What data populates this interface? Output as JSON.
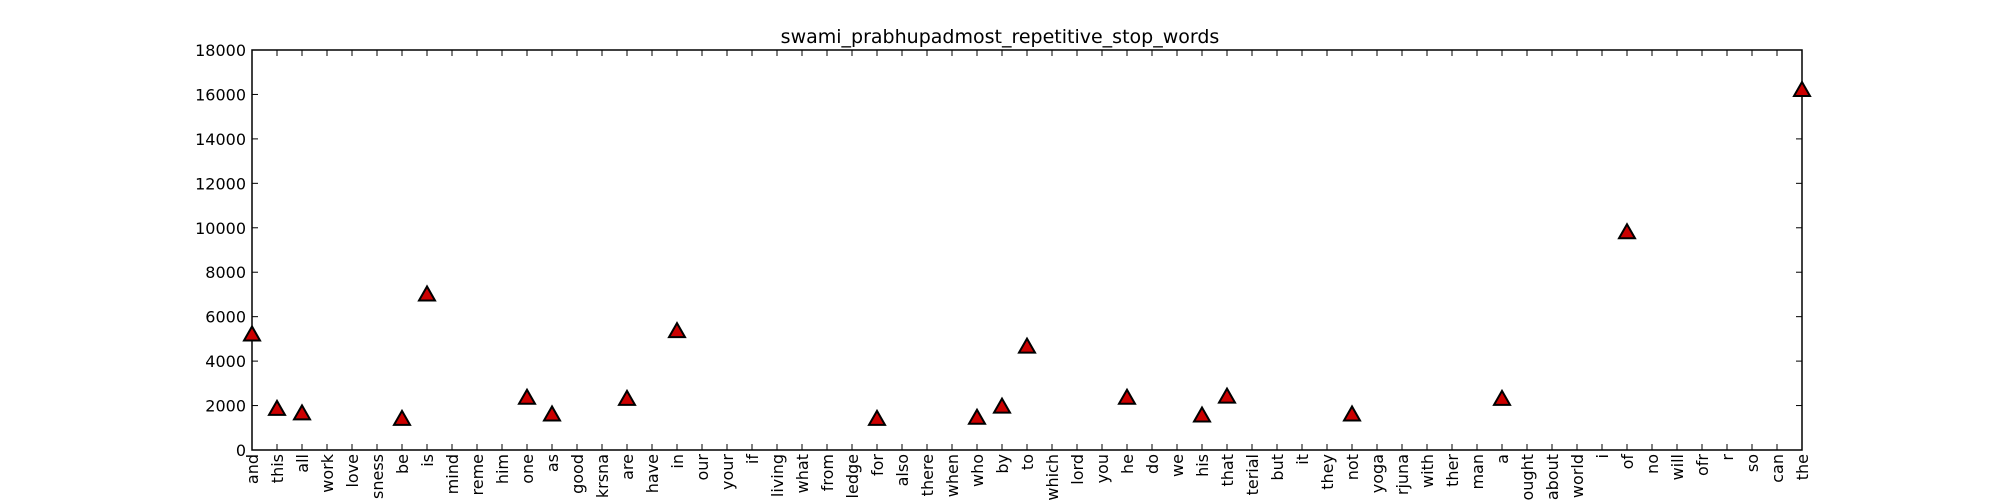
{
  "chart_data": {
    "type": "scatter",
    "title": "swami_prabhupadmost_repetitive_stop_words",
    "xlabel": "",
    "ylabel": "",
    "ylim": [
      0,
      18000
    ],
    "yticks": [
      0,
      2000,
      4000,
      6000,
      8000,
      10000,
      12000,
      14000,
      16000,
      18000
    ],
    "grid": false,
    "marker": "triangle",
    "marker_color": "#cc0000",
    "categories": [
      "and",
      "this",
      "all",
      "work",
      "love",
      "sness",
      "be",
      "is",
      "mind",
      "reme",
      "him",
      "one",
      "as",
      "good",
      "krsna",
      "are",
      "have",
      "in",
      "our",
      "your",
      "if",
      "living",
      "what",
      "from",
      "ledge",
      "for",
      "also",
      "there",
      "when",
      "who",
      "by",
      "to",
      "which",
      "lord",
      "you",
      "he",
      "do",
      "we",
      "his",
      "that",
      "terial",
      "but",
      "it",
      "they",
      "not",
      "yoga",
      "rjuna",
      "with",
      "ther",
      "man",
      "a",
      "ought",
      "about",
      "world",
      "i",
      "of",
      "no",
      "will",
      "ofr",
      "r",
      "so",
      "can",
      "the"
    ],
    "values": [
      5200,
      1850,
      1650,
      null,
      null,
      null,
      1400,
      7000,
      null,
      null,
      null,
      2350,
      1600,
      null,
      null,
      2300,
      null,
      5350,
      null,
      null,
      null,
      null,
      null,
      null,
      null,
      1400,
      null,
      null,
      null,
      1450,
      1950,
      4650,
      null,
      null,
      null,
      2350,
      null,
      null,
      1550,
      2400,
      null,
      null,
      null,
      null,
      1600,
      null,
      null,
      null,
      null,
      null,
      2300,
      null,
      null,
      null,
      null,
      9800,
      null,
      null,
      null,
      null,
      null,
      null,
      16200
    ]
  }
}
